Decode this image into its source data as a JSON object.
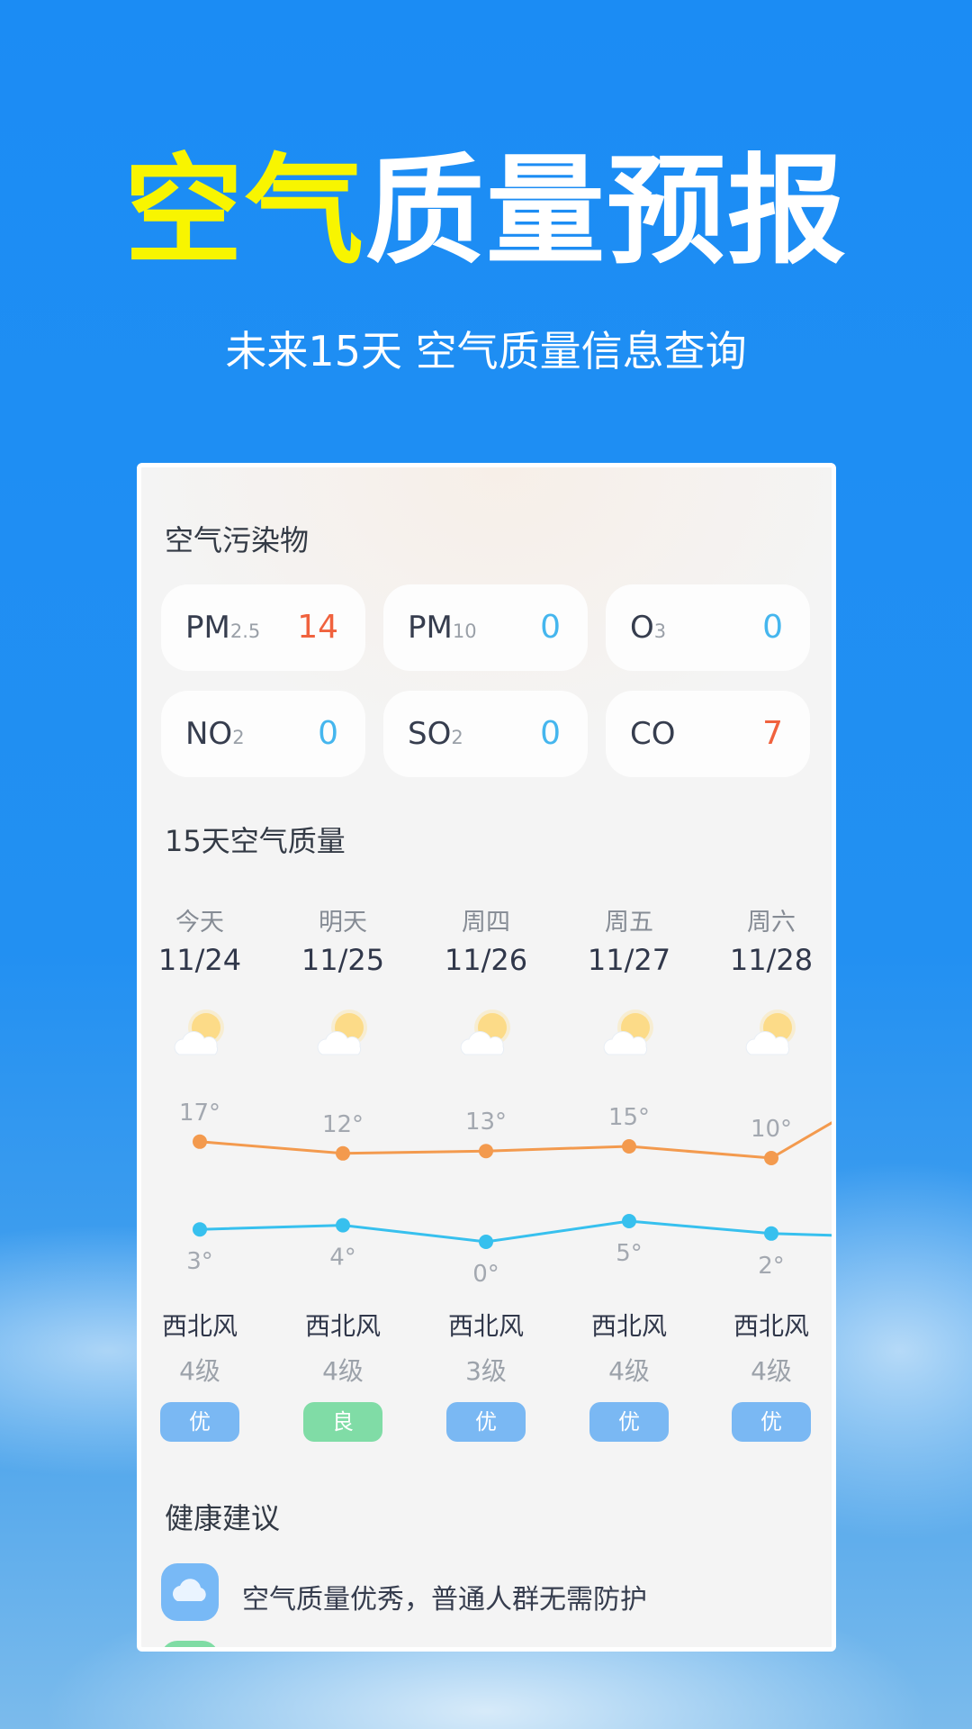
{
  "header": {
    "title_highlight": "空气",
    "title_rest": "质量预报",
    "subtitle": "未来15天 空气质量信息查询"
  },
  "pollutants": {
    "title": "空气污染物",
    "items": [
      {
        "name": "PM",
        "sub": "2.5",
        "value": "14",
        "color": "#f0623e"
      },
      {
        "name": "PM",
        "sub": "10",
        "value": "0",
        "color": "#45b6ee"
      },
      {
        "name": "O",
        "sub": "3",
        "value": "0",
        "color": "#45b6ee"
      },
      {
        "name": "NO",
        "sub": "2",
        "value": "0",
        "color": "#45b6ee"
      },
      {
        "name": "SO",
        "sub": "2",
        "value": "0",
        "color": "#45b6ee"
      },
      {
        "name": "CO",
        "sub": "",
        "value": "7",
        "color": "#f0623e"
      }
    ]
  },
  "forecast": {
    "title": "15天空气质量",
    "days": [
      {
        "day": "今天",
        "date": "11/24",
        "icon": "partly-cloudy-icon",
        "high": "17°",
        "low": "3°",
        "wind": "西北风",
        "level": "4级",
        "aqi": "优"
      },
      {
        "day": "明天",
        "date": "11/25",
        "icon": "partly-cloudy-icon",
        "high": "12°",
        "low": "4°",
        "wind": "西北风",
        "level": "4级",
        "aqi": "良"
      },
      {
        "day": "周四",
        "date": "11/26",
        "icon": "partly-cloudy-icon",
        "high": "13°",
        "low": "0°",
        "wind": "西北风",
        "level": "3级",
        "aqi": "优"
      },
      {
        "day": "周五",
        "date": "11/27",
        "icon": "partly-cloudy-icon",
        "high": "15°",
        "low": "5°",
        "wind": "西北风",
        "level": "4级",
        "aqi": "优"
      },
      {
        "day": "周六",
        "date": "11/28",
        "icon": "partly-cloudy-icon",
        "high": "10°",
        "low": "2°",
        "wind": "西北风",
        "level": "4级",
        "aqi": "优"
      }
    ],
    "high_color": "#f39a4e",
    "low_color": "#37c0ee",
    "aqi_colors": {
      "优": "#7ab8f3",
      "良": "#80dca6"
    }
  },
  "health": {
    "title": "健康建议",
    "items": [
      {
        "icon": "cloud-icon",
        "text": "空气质量优秀，普通人群无需防护"
      }
    ]
  }
}
